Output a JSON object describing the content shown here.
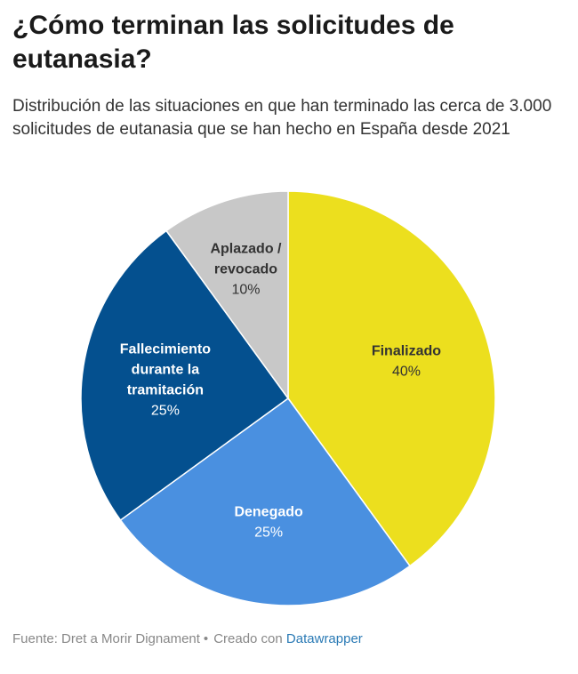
{
  "title": "¿Cómo terminan las solicitudes de eutanasia?",
  "subtitle": "Distribución de las situaciones en que han terminado las cerca de 3.000 solicitudes de eutanasia que se han hecho en España desde 2021",
  "footer": {
    "source": "Fuente: Dret a Morir Dignament",
    "separator": "•",
    "created_with": "Creado con",
    "tool": "Datawrapper"
  },
  "chart_data": {
    "type": "pie",
    "slices": [
      {
        "name": "Finalizado",
        "label_lines": [
          "Finalizado"
        ],
        "value": 40,
        "value_label": "40%",
        "color": "#ecdf1e",
        "text_color": "#333333"
      },
      {
        "name": "Denegado",
        "label_lines": [
          "Denegado"
        ],
        "value": 25,
        "value_label": "25%",
        "color": "#4a90e0",
        "text_color": "#ffffff"
      },
      {
        "name": "Fallecimiento durante la tramitación",
        "label_lines": [
          "Fallecimiento",
          "durante la",
          "tramitación"
        ],
        "value": 25,
        "value_label": "25%",
        "color": "#04508f",
        "text_color": "#ffffff"
      },
      {
        "name": "Aplazado / revocado",
        "label_lines": [
          "Aplazado /",
          "revocado"
        ],
        "value": 10,
        "value_label": "10%",
        "color": "#c8c8c8",
        "text_color": "#333333"
      }
    ]
  }
}
